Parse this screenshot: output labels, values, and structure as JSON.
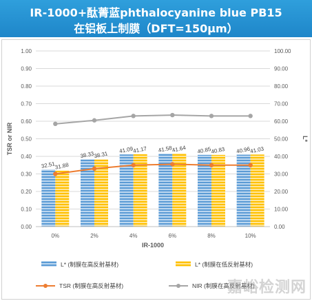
{
  "title": {
    "line1": "IR-1000+酞菁蓝phthalocyanine blue PB15",
    "line2": "在铝板上制膜（DFT=150μm）"
  },
  "watermark": "嘉峪检测网",
  "chart_data": {
    "type": "bar",
    "categories": [
      "0%",
      "2%",
      "4%",
      "6%",
      "8%",
      "10%"
    ],
    "xlabel": "IR-1000",
    "ylabel_left": "TSR or NIR",
    "ylabel_right": "L*",
    "ylim_left": [
      0,
      1
    ],
    "ylim_right": [
      0,
      100
    ],
    "yticks_left": [
      "0.00",
      "0.10",
      "0.20",
      "0.30",
      "0.40",
      "0.50",
      "0.60",
      "0.70",
      "0.80",
      "0.90",
      "1.00"
    ],
    "yticks_right": [
      "0.00",
      "10.00",
      "20.00",
      "30.00",
      "40.00",
      "50.00",
      "60.00",
      "70.00",
      "80.00",
      "90.00",
      "100.00"
    ],
    "bar_series": [
      {
        "name": "L* (制膜在高反射基材)",
        "color": "#5b9bd5",
        "values": [
          32.51,
          38.33,
          41.09,
          41.58,
          40.85,
          40.96
        ],
        "labels": [
          "32.51",
          "38.33",
          "41.09",
          "41.58",
          "40.85",
          "40.96"
        ]
      },
      {
        "name": "L* (制膜在低反射基材)",
        "color": "#ffc000",
        "values": [
          31.88,
          38.31,
          41.17,
          41.64,
          40.83,
          41.03
        ],
        "labels": [
          "31.88",
          "38.31",
          "41.17",
          "41.64",
          "40.83",
          "41.03"
        ]
      }
    ],
    "line_series": [
      {
        "name": "TSR (制膜在高反射基材)",
        "color": "#ed7d31",
        "values": [
          0.3,
          0.33,
          0.35,
          0.355,
          0.35,
          0.35
        ]
      },
      {
        "name": "NIR (制膜在高反射基材)",
        "color": "#a5a5a5",
        "values": [
          0.585,
          0.605,
          0.63,
          0.635,
          0.63,
          0.63
        ]
      }
    ],
    "grid": true,
    "legend_position": "bottom"
  }
}
